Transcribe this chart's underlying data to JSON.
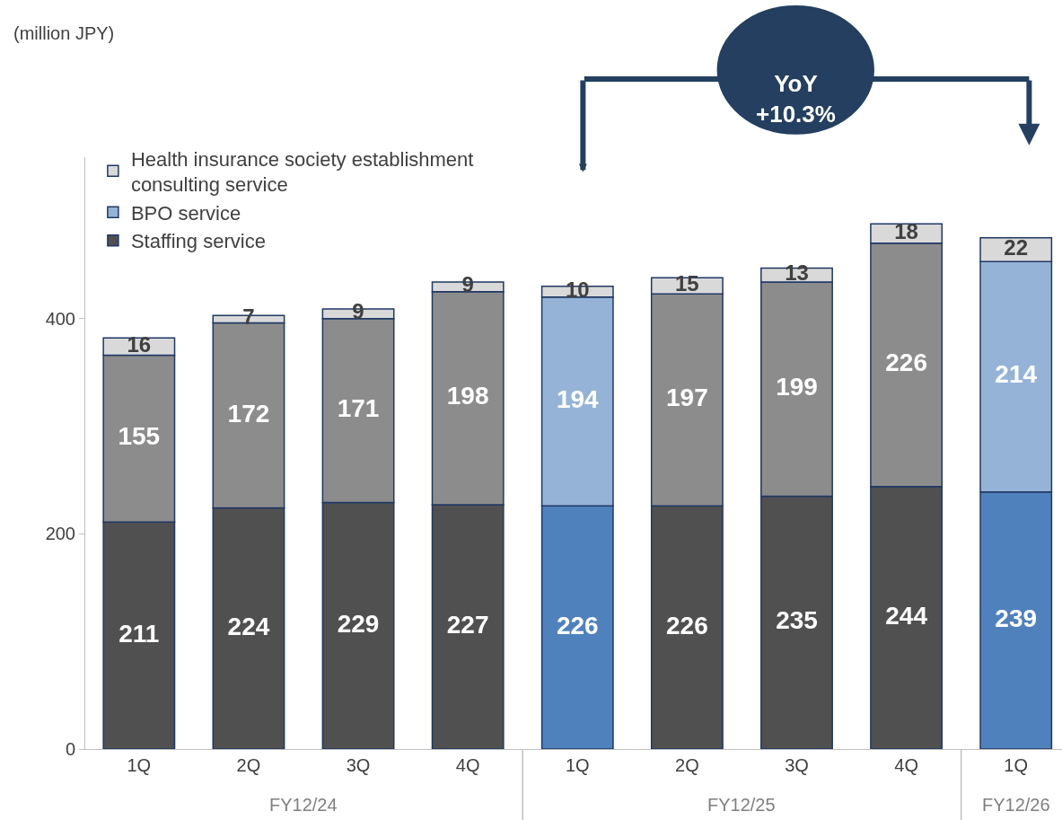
{
  "chart_data": {
    "type": "bar",
    "stacked": true,
    "categories": [
      "1Q",
      "2Q",
      "3Q",
      "4Q",
      "1Q",
      "2Q",
      "3Q",
      "4Q",
      "1Q"
    ],
    "series": [
      {
        "name": "Staffing service",
        "color": "#505050",
        "colors": [
          "#505050",
          "#505050",
          "#505050",
          "#505050",
          "#4f81bd",
          "#505050",
          "#505050",
          "#505050",
          "#4f81bd"
        ],
        "values": [
          211,
          224,
          229,
          227,
          226,
          226,
          235,
          244,
          239
        ]
      },
      {
        "name": "BPO service",
        "color": "#95b3d7",
        "colors": [
          "#8c8c8c",
          "#8c8c8c",
          "#8c8c8c",
          "#8c8c8c",
          "#95b3d7",
          "#8c8c8c",
          "#8c8c8c",
          "#8c8c8c",
          "#95b3d7"
        ],
        "values": [
          155,
          172,
          171,
          198,
          194,
          197,
          199,
          226,
          214
        ]
      },
      {
        "name": "Health insurance society establishment\nconsulting service",
        "color": "#d9d9d9",
        "colors": [
          "#d9d9d9",
          "#d9d9d9",
          "#d9d9d9",
          "#d9d9d9",
          "#d9d9d9",
          "#d9d9d9",
          "#d9d9d9",
          "#d9d9d9",
          "#d9d9d9"
        ],
        "values": [
          16,
          7,
          9,
          9,
          10,
          15,
          13,
          18,
          22
        ]
      }
    ],
    "ylim": [
      0,
      550
    ],
    "yticks": [
      0,
      200,
      400
    ],
    "legend": "top left",
    "data_labels": true,
    "annotations": [
      "(million JPY)",
      "YoY\n+10.3%",
      "FY12/24",
      "FY12/25",
      "FY12/26"
    ]
  }
}
